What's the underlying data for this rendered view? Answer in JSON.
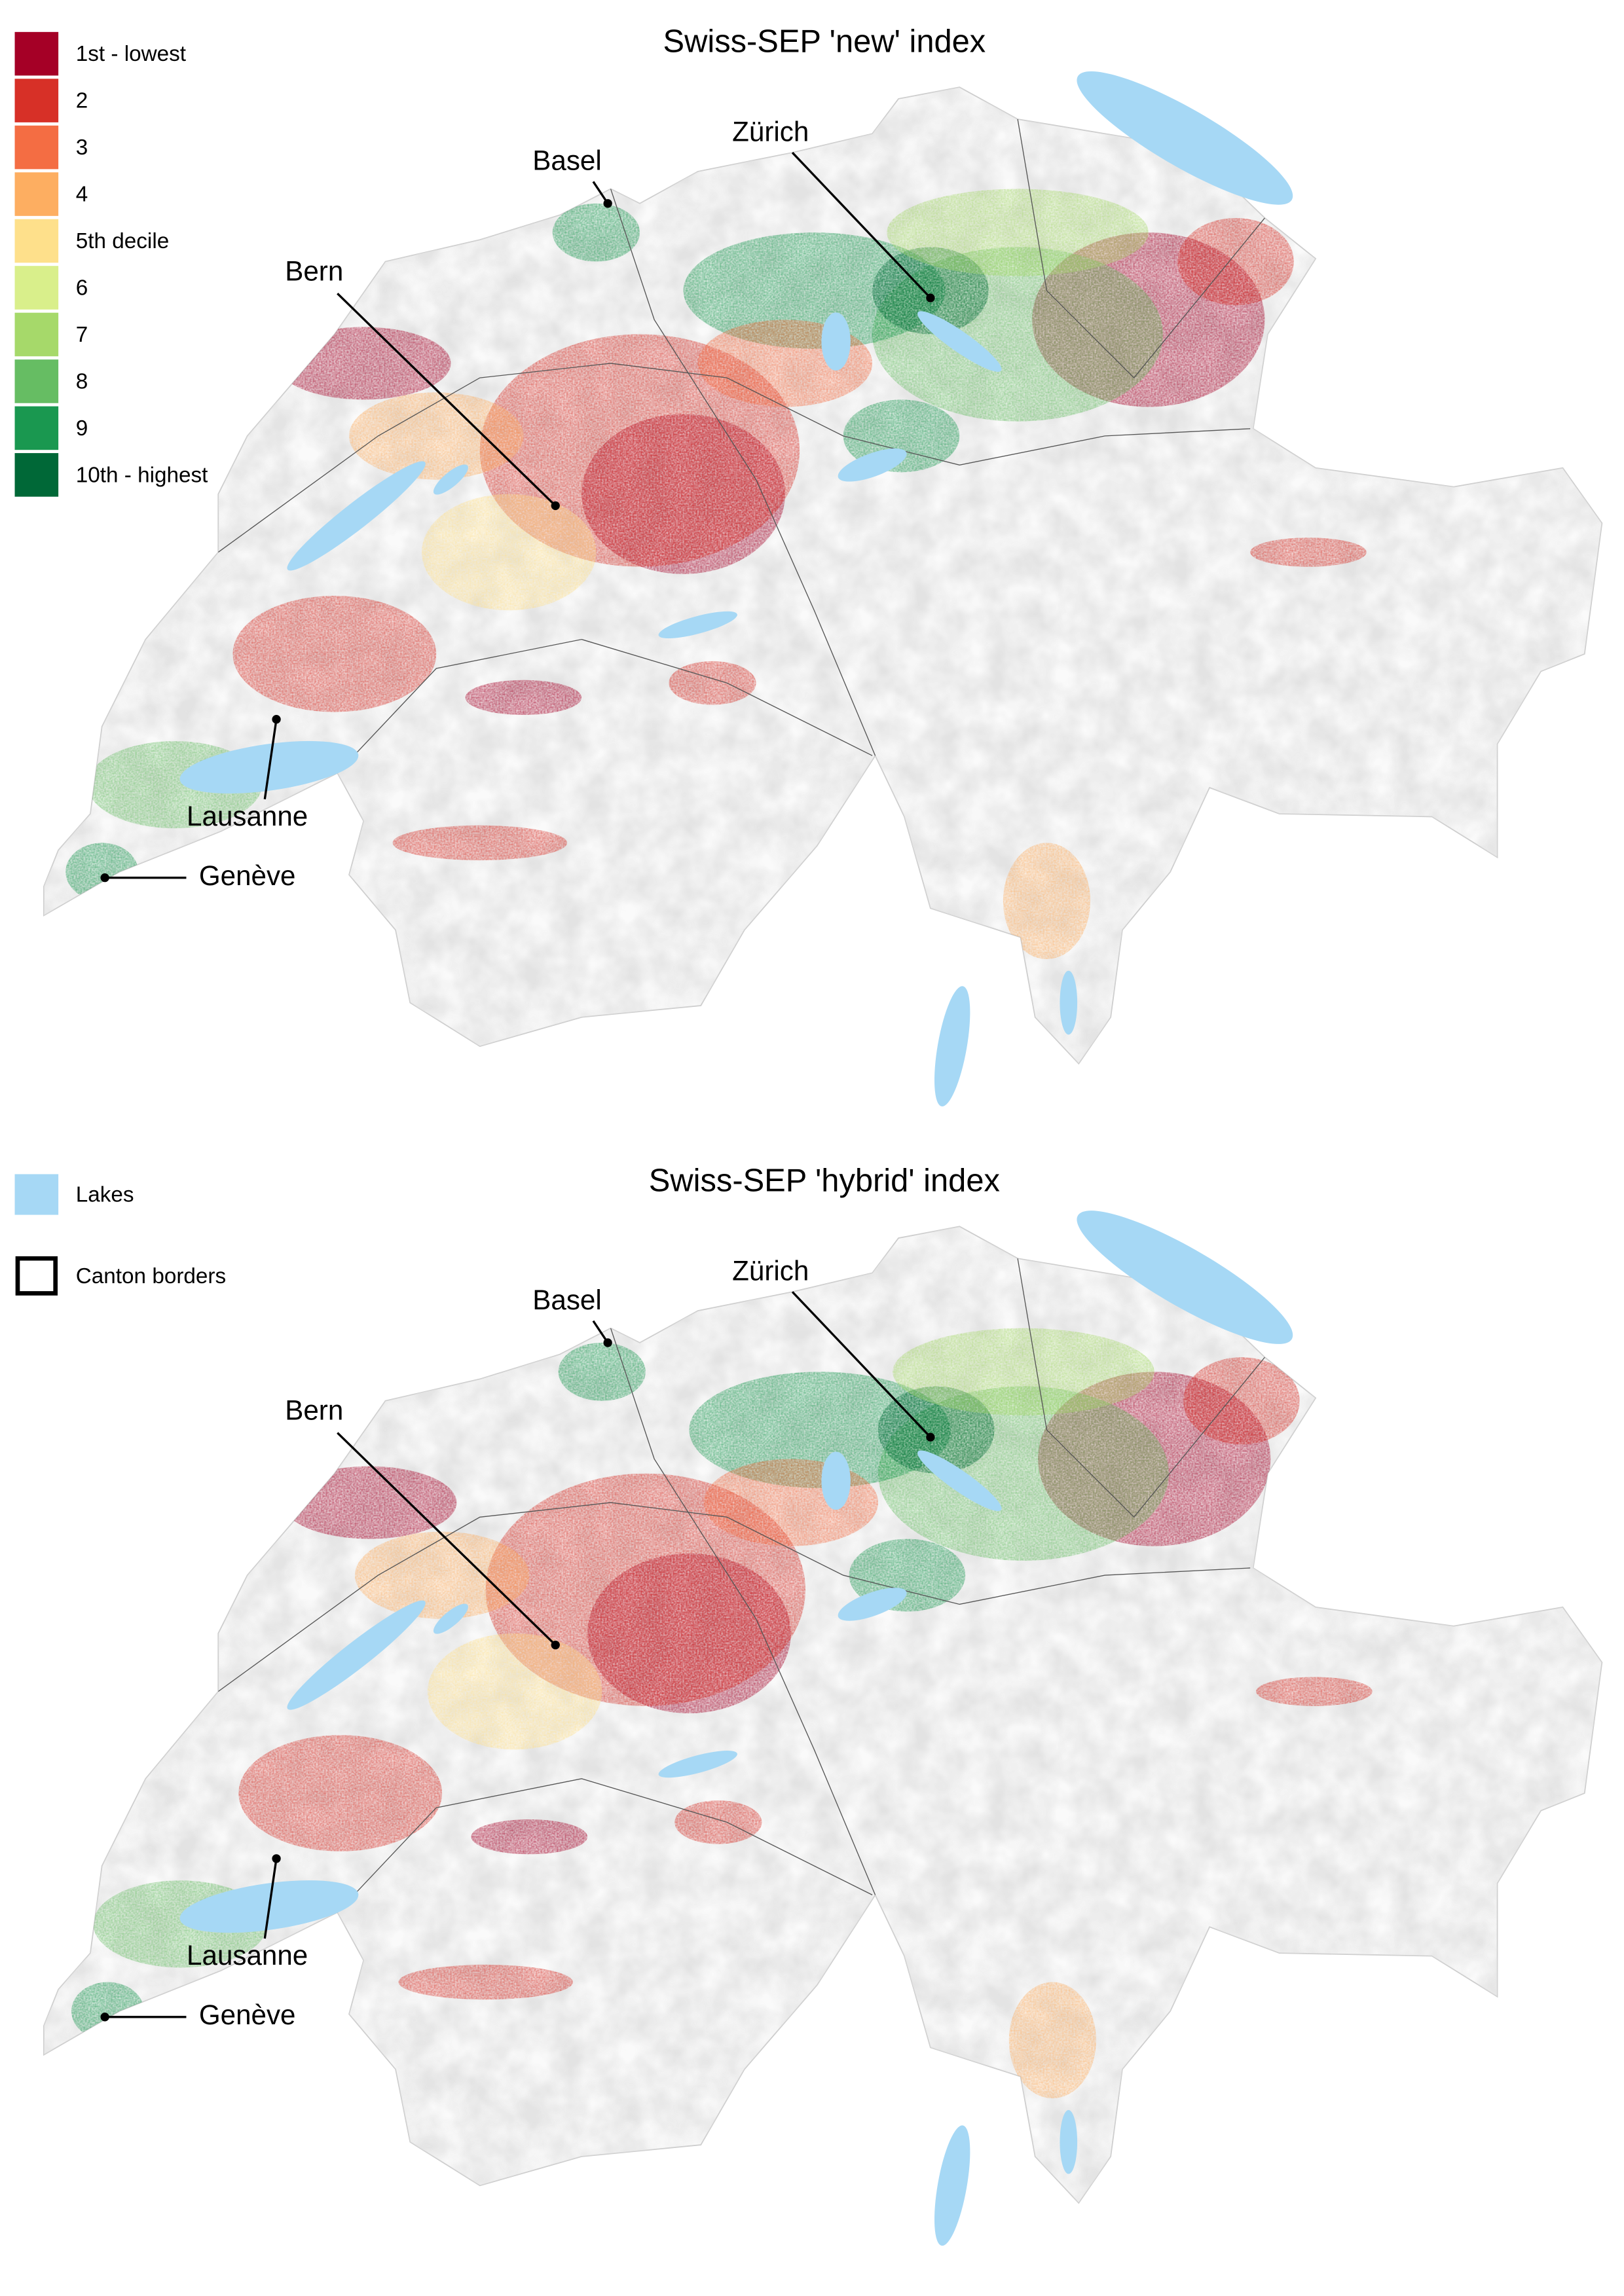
{
  "legend": {
    "deciles": [
      {
        "label": "1st - lowest",
        "color": "#a50026"
      },
      {
        "label": "2",
        "color": "#d73027"
      },
      {
        "label": "3",
        "color": "#f46d43"
      },
      {
        "label": "4",
        "color": "#fdae61"
      },
      {
        "label": "5th decile",
        "color": "#fee08b"
      },
      {
        "label": "6",
        "color": "#d9ef8b"
      },
      {
        "label": "7",
        "color": "#a6d96a"
      },
      {
        "label": "8",
        "color": "#66bd63"
      },
      {
        "label": "9",
        "color": "#1a9850"
      },
      {
        "label": "10th - highest",
        "color": "#006837"
      }
    ],
    "lakes": "Lakes",
    "canton_borders": "Canton borders"
  },
  "maps": [
    {
      "title": "Swiss-SEP 'new' index",
      "cities": [
        "Basel",
        "Zürich",
        "Bern",
        "Lausanne",
        "Genève"
      ]
    },
    {
      "title": "Swiss-SEP 'hybrid' index",
      "cities": [
        "Basel",
        "Zürich",
        "Bern",
        "Lausanne",
        "Genève"
      ]
    }
  ]
}
